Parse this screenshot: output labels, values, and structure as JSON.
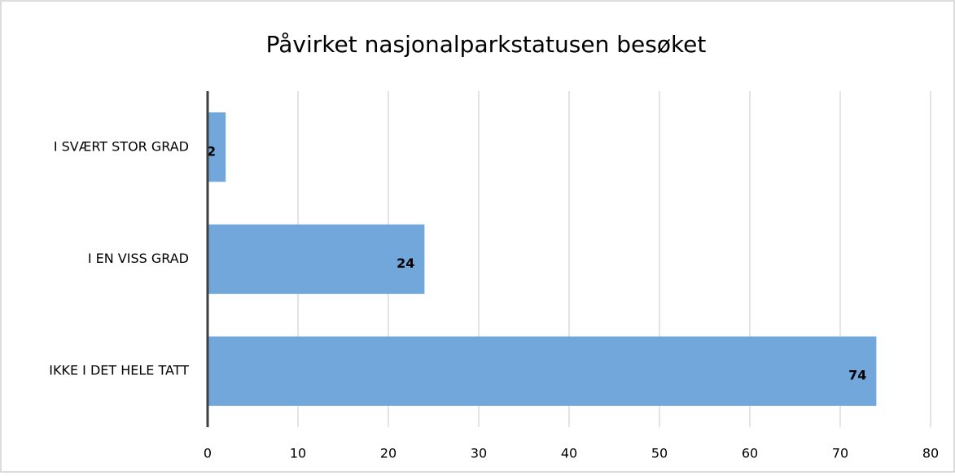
{
  "chart_data": {
    "type": "bar",
    "orientation": "horizontal",
    "title": "Påvirket nasjonalparkstatusen besøket",
    "categories": [
      "I SVÆRT STOR GRAD",
      "I EN VISS GRAD",
      "IKKE I DET HELE TATT"
    ],
    "values": [
      2,
      24,
      74
    ],
    "color": "#72a7db",
    "xlim": [
      0,
      80
    ],
    "xticks": [
      0,
      10,
      20,
      30,
      40,
      50,
      60,
      70,
      80
    ],
    "grid": true
  }
}
